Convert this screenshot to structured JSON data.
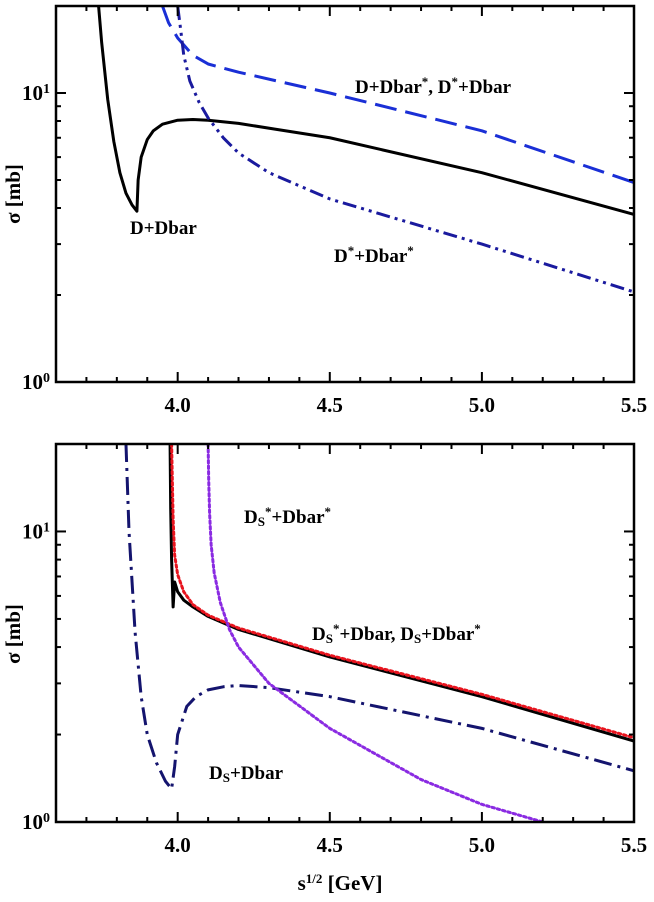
{
  "chart_data": [
    {
      "type": "line",
      "xlim": [
        3.6,
        5.5
      ],
      "ylim": [
        1,
        20
      ],
      "yscale": "log",
      "ylabel": "σ [mb]",
      "xlabel": "",
      "x_ticks": [
        "4.0",
        "4.5",
        "5.0",
        "5.5"
      ],
      "y_ticks": [
        {
          "base": "10",
          "exp": "0"
        },
        {
          "base": "10",
          "exp": "1"
        }
      ],
      "annotations": [
        {
          "parts": [
            {
              "t": "D+Dbar"
            }
          ]
        },
        {
          "parts": [
            {
              "t": "D+Dbar"
            },
            {
              "t": "*",
              "sup": true
            },
            {
              "t": ", D"
            },
            {
              "t": "*",
              "sup": true
            },
            {
              "t": "+Dbar"
            }
          ]
        },
        {
          "parts": [
            {
              "t": "D"
            },
            {
              "t": "*",
              "sup": true
            },
            {
              "t": "+Dbar"
            },
            {
              "t": "*",
              "sup": true
            }
          ]
        }
      ],
      "series": [
        {
          "style": "solid",
          "color": "#000000",
          "x": [
            3.74,
            3.75,
            3.77,
            3.79,
            3.81,
            3.83,
            3.85,
            3.866,
            3.87,
            3.88,
            3.9,
            3.92,
            3.95,
            4.0,
            4.05,
            4.1,
            4.2,
            4.5,
            5.0,
            5.5
          ],
          "y": [
            20,
            15,
            9.5,
            6.8,
            5.3,
            4.5,
            4.1,
            3.9,
            5.0,
            6.0,
            6.9,
            7.4,
            7.8,
            8.05,
            8.1,
            8.05,
            7.85,
            7.0,
            5.3,
            3.8
          ]
        },
        {
          "style": "dashed",
          "color": "#1a2fd6",
          "x": [
            3.95,
            3.97,
            4.0,
            4.05,
            4.1,
            4.2,
            4.5,
            5.0,
            5.5
          ],
          "y": [
            20,
            17.5,
            15.5,
            13.5,
            12.6,
            11.8,
            10.0,
            7.4,
            4.9
          ]
        },
        {
          "style": "dashdotdot",
          "color": "#1a1a9e",
          "x": [
            4.0,
            4.01,
            4.02,
            4.04,
            4.07,
            4.1,
            4.15,
            4.2,
            4.3,
            4.5,
            5.0,
            5.5
          ],
          "y": [
            20,
            16.5,
            13.5,
            11.0,
            9.3,
            8.2,
            7.0,
            6.2,
            5.3,
            4.3,
            3.0,
            2.05
          ]
        }
      ]
    },
    {
      "type": "line",
      "xlim": [
        3.6,
        5.5
      ],
      "ylim": [
        1,
        20
      ],
      "yscale": "log",
      "ylabel": "σ [mb]",
      "xlabel": "s^(1/2) [GeV]",
      "xlabel_parts": [
        {
          "t": "s"
        },
        {
          "t": "1/2",
          "sup": true
        },
        {
          "t": " [GeV]"
        }
      ],
      "x_ticks": [
        "4.0",
        "4.5",
        "5.0",
        "5.5"
      ],
      "y_ticks": [
        {
          "base": "10",
          "exp": "0"
        },
        {
          "base": "10",
          "exp": "1"
        }
      ],
      "annotations": [
        {
          "parts": [
            {
              "t": "D"
            },
            {
              "t": "S",
              "sub": true
            },
            {
              "t": "*",
              "sup": true
            },
            {
              "t": "+Dbar"
            },
            {
              "t": "*",
              "sup": true
            }
          ]
        },
        {
          "parts": [
            {
              "t": "D"
            },
            {
              "t": "S",
              "sub": true
            },
            {
              "t": "*",
              "sup": true
            },
            {
              "t": "+Dbar, D"
            },
            {
              "t": "S",
              "sub": true
            },
            {
              "t": "+Dbar"
            },
            {
              "t": "*",
              "sup": true
            }
          ]
        },
        {
          "parts": [
            {
              "t": "D"
            },
            {
              "t": "S",
              "sub": true
            },
            {
              "t": "+Dbar"
            }
          ]
        }
      ],
      "series": [
        {
          "style": "solid",
          "color": "#000000",
          "x": [
            3.975,
            3.977,
            3.98,
            3.985,
            3.99,
            4.0,
            4.02,
            4.05,
            4.1,
            4.2,
            4.5,
            5.0,
            5.5
          ],
          "y": [
            20,
            12,
            8.0,
            5.5,
            6.7,
            6.2,
            5.8,
            5.5,
            5.1,
            4.6,
            3.7,
            2.7,
            1.9
          ]
        },
        {
          "style": "dotted",
          "color": "#e8141e",
          "x": [
            3.98,
            3.985,
            3.99,
            4.0,
            4.02,
            4.05,
            4.1,
            4.2,
            4.5,
            5.0,
            5.5
          ],
          "y": [
            20,
            11.0,
            8.3,
            7.1,
            6.2,
            5.6,
            5.15,
            4.65,
            3.75,
            2.75,
            1.95
          ]
        },
        {
          "style": "dashdot",
          "color": "#14146e",
          "x": [
            3.83,
            3.84,
            3.86,
            3.88,
            3.9,
            3.93,
            3.96,
            3.98,
            3.99,
            4.0,
            4.03,
            4.06,
            4.1,
            4.15,
            4.2,
            4.3,
            4.5,
            5.0,
            5.5
          ],
          "y": [
            20,
            10.0,
            4.5,
            2.7,
            2.0,
            1.6,
            1.38,
            1.3,
            1.55,
            2.0,
            2.5,
            2.7,
            2.85,
            2.92,
            2.95,
            2.9,
            2.7,
            2.1,
            1.5
          ]
        },
        {
          "style": "dotted",
          "color": "#8a2be2",
          "x": [
            4.1,
            4.102,
            4.105,
            4.11,
            4.12,
            4.14,
            4.17,
            4.2,
            4.3,
            4.5,
            4.8,
            5.0,
            5.2
          ],
          "y": [
            20,
            15.0,
            11.5,
            9.0,
            7.2,
            5.7,
            4.6,
            4.0,
            3.0,
            2.1,
            1.4,
            1.15,
            1.0
          ]
        }
      ]
    }
  ]
}
